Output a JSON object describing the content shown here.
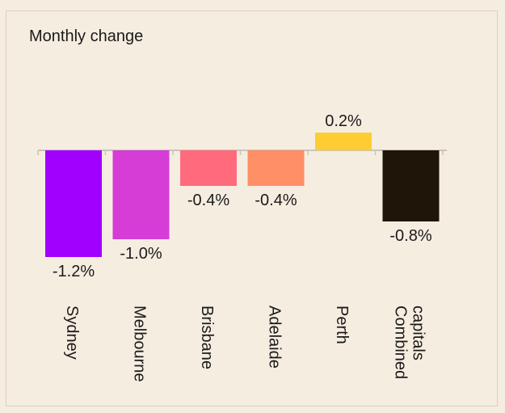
{
  "chart_data": {
    "type": "bar",
    "title": "Monthly change",
    "categories": [
      "Sydney",
      "Melbourne",
      "Brisbane",
      "Adelaide",
      "Perth",
      "Combined capitals"
    ],
    "category_lines": [
      [
        "Sydney"
      ],
      [
        "Melbourne"
      ],
      [
        "Brisbane"
      ],
      [
        "Adelaide"
      ],
      [
        "Perth"
      ],
      [
        "Combined",
        "capitals"
      ]
    ],
    "values": [
      -1.2,
      -1.0,
      -0.4,
      -0.4,
      0.2,
      -0.8
    ],
    "value_labels": [
      "-1.2%",
      "-1.0%",
      "-0.4%",
      "-0.4%",
      "0.2%",
      "-0.8%"
    ],
    "colors": [
      "#a100ff",
      "#d63cd6",
      "#ff6b7d",
      "#ff8f66",
      "#ffcc33",
      "#1f1509"
    ],
    "xlabel": "",
    "ylabel": "",
    "grid": false
  }
}
